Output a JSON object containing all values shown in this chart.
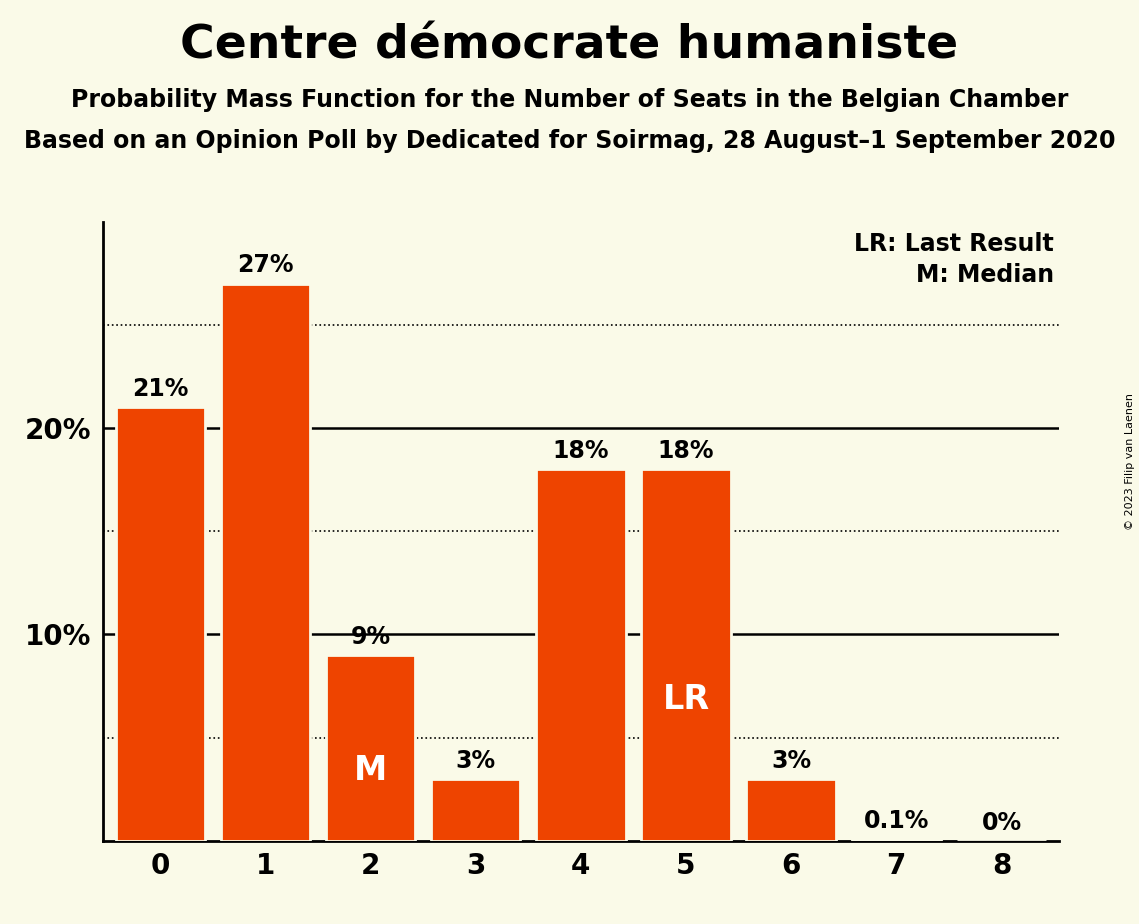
{
  "title": "Centre démocrate humaniste",
  "subtitle1": "Probability Mass Function for the Number of Seats in the Belgian Chamber",
  "subtitle2": "Based on an Opinion Poll by Dedicated for Soirmag, 28 August–1 September 2020",
  "copyright": "© 2023 Filip van Laenen",
  "categories": [
    0,
    1,
    2,
    3,
    4,
    5,
    6,
    7,
    8
  ],
  "values": [
    21,
    27,
    9,
    3,
    18,
    18,
    3,
    0.1,
    0
  ],
  "labels": [
    "21%",
    "27%",
    "9%",
    "3%",
    "18%",
    "18%",
    "3%",
    "0.1%",
    "0%"
  ],
  "bar_color": "#EE4400",
  "background_color": "#FAFAE8",
  "bar_edge_color": "#FAFAE8",
  "ylim": [
    0,
    30
  ],
  "solid_lines": [
    10,
    20
  ],
  "dotted_lines": [
    5,
    15,
    25
  ],
  "median_bar_idx": 2,
  "lr_bar_idx": 5,
  "legend_lr": "LR: Last Result",
  "legend_m": "M: Median",
  "label_inside_bars": [
    2,
    5
  ],
  "label_inside_text": [
    "M",
    "LR"
  ],
  "title_fontsize": 34,
  "subtitle_fontsize": 17,
  "label_fontsize": 17,
  "axis_fontsize": 20,
  "inside_label_fontsize": 24,
  "legend_fontsize": 17
}
